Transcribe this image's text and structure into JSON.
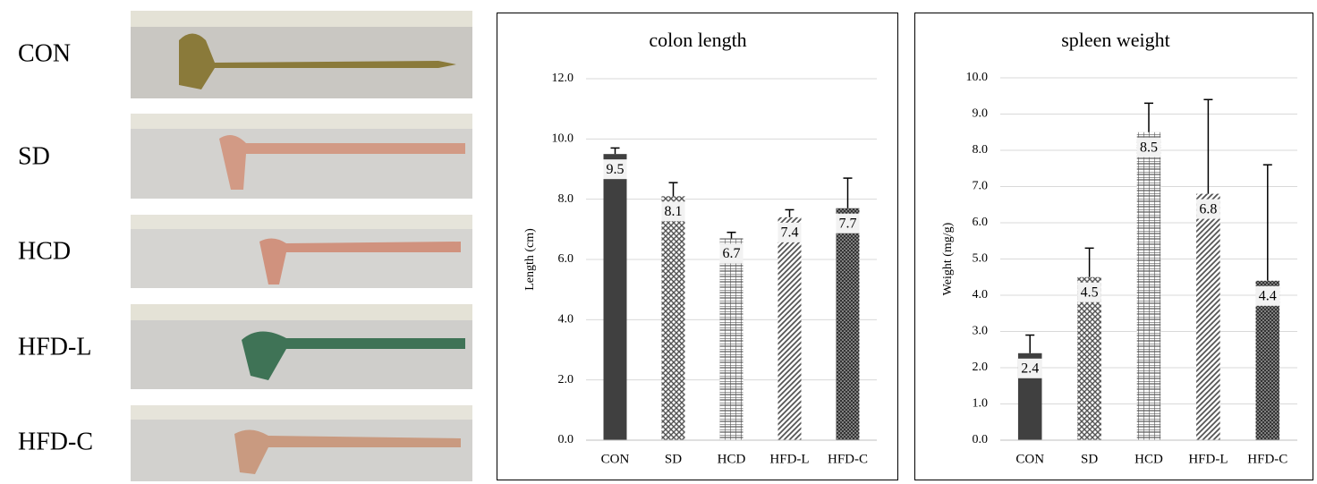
{
  "photo_panel": {
    "labels": [
      "CON",
      "SD",
      "HCD",
      "HFD-L",
      "HFD-C"
    ]
  },
  "chart_data": [
    {
      "type": "bar",
      "title": "colon length",
      "y_label": "Length (cm)",
      "categories": [
        "CON",
        "SD",
        "HCD",
        "HFD-L",
        "HFD-C"
      ],
      "values": [
        9.5,
        8.1,
        6.7,
        7.4,
        7.7
      ],
      "errors": [
        0.2,
        0.45,
        0.2,
        0.25,
        1.0
      ],
      "colors": [
        "#404040",
        "#555555",
        "#555555",
        "#555555",
        "#333333"
      ],
      "ylim": [
        0,
        12
      ],
      "yticks": [
        {
          "value": 0,
          "label": "0.0"
        },
        {
          "value": 2,
          "label": "2.0"
        },
        {
          "value": 4,
          "label": "4.0"
        },
        {
          "value": 6,
          "label": "6.0"
        },
        {
          "value": 8,
          "label": "8.0"
        },
        {
          "value": 10,
          "label": "10.0"
        },
        {
          "value": 12,
          "label": "12.0"
        }
      ],
      "grid": true
    },
    {
      "type": "bar",
      "title": "spleen weight",
      "y_label": "Weight (mg/g)",
      "categories": [
        "CON",
        "SD",
        "HCD",
        "HFD-L",
        "HFD-C"
      ],
      "values": [
        2.4,
        4.5,
        8.5,
        6.8,
        4.4
      ],
      "errors": [
        0.5,
        0.8,
        0.8,
        2.6,
        3.2
      ],
      "colors": [
        "#404040",
        "#555555",
        "#555555",
        "#555555",
        "#333333"
      ],
      "ylim": [
        0,
        10
      ],
      "yticks": [
        {
          "value": 0,
          "label": "0.0"
        },
        {
          "value": 1,
          "label": "1.0"
        },
        {
          "value": 2,
          "label": "2.0"
        },
        {
          "value": 3,
          "label": "3.0"
        },
        {
          "value": 4,
          "label": "4.0"
        },
        {
          "value": 5,
          "label": "5.0"
        },
        {
          "value": 6,
          "label": "6.0"
        },
        {
          "value": 7,
          "label": "7.0"
        },
        {
          "value": 8,
          "label": "8.0"
        },
        {
          "value": 9,
          "label": "9.0"
        },
        {
          "value": 10,
          "label": "10.0"
        }
      ],
      "grid": true
    }
  ]
}
